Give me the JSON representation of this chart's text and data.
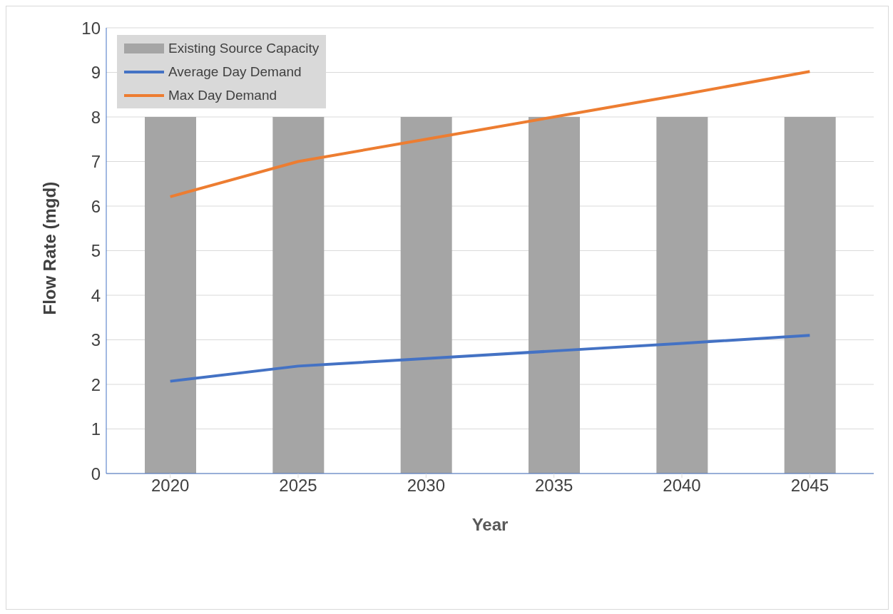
{
  "chart_data": {
    "type": "bar",
    "xlabel": "Year",
    "ylabel": "Flow Rate (mgd)",
    "categories": [
      "2020",
      "2025",
      "2030",
      "2035",
      "2040",
      "2045"
    ],
    "series": [
      {
        "name": "Existing Source Capacity",
        "color": "#a5a5a5",
        "values": [
          8,
          8,
          8,
          8,
          8,
          8
        ]
      },
      {
        "name": "Average Day Demand",
        "type": "line",
        "color": "#4472c4",
        "values": [
          2.07,
          2.41,
          2.58,
          2.75,
          2.92,
          3.1
        ]
      },
      {
        "name": "Max Day Demand",
        "type": "line",
        "color": "#ed7d31",
        "values": [
          6.21,
          7.0,
          7.5,
          8.0,
          8.5,
          9.02
        ]
      }
    ],
    "ylim": [
      0,
      10
    ],
    "yticks": [
      0,
      1,
      2,
      3,
      4,
      5,
      6,
      7,
      8,
      9,
      10
    ],
    "grid": "y",
    "legend": "top left"
  }
}
